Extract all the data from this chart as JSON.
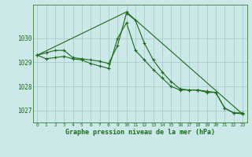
{
  "xlabel": "Graphe pression niveau de la mer (hPa)",
  "background_color": "#cce8e8",
  "grid_color": "#aacccc",
  "line_color": "#1a6b1a",
  "ylim": [
    1026.5,
    1031.4
  ],
  "yticks": [
    1027,
    1028,
    1029,
    1030
  ],
  "xlim": [
    -0.5,
    23.5
  ],
  "series1": [
    1029.3,
    1029.4,
    1029.5,
    1029.5,
    1029.2,
    1029.15,
    1029.1,
    1029.05,
    1028.95,
    1029.7,
    1031.05,
    1030.75,
    1029.8,
    1029.1,
    1028.6,
    1028.2,
    1027.9,
    1027.85,
    1027.85,
    1027.75,
    1027.75,
    1027.1,
    1026.9,
    1026.9
  ],
  "series2": [
    1029.3,
    1029.15,
    1029.2,
    1029.25,
    1029.15,
    1029.1,
    1028.95,
    1028.85,
    1028.75,
    1030.0,
    1030.65,
    1029.5,
    1029.1,
    1028.7,
    1028.35,
    1028.0,
    1027.85,
    1027.85,
    1027.85,
    1027.8,
    1027.75,
    1027.1,
    1026.9,
    1026.85
  ],
  "series3_x": [
    0,
    10,
    23
  ],
  "series3_y": [
    1029.3,
    1031.1,
    1026.85
  ],
  "hours": [
    0,
    1,
    2,
    3,
    4,
    5,
    6,
    7,
    8,
    9,
    10,
    11,
    12,
    13,
    14,
    15,
    16,
    17,
    18,
    19,
    20,
    21,
    22,
    23
  ]
}
